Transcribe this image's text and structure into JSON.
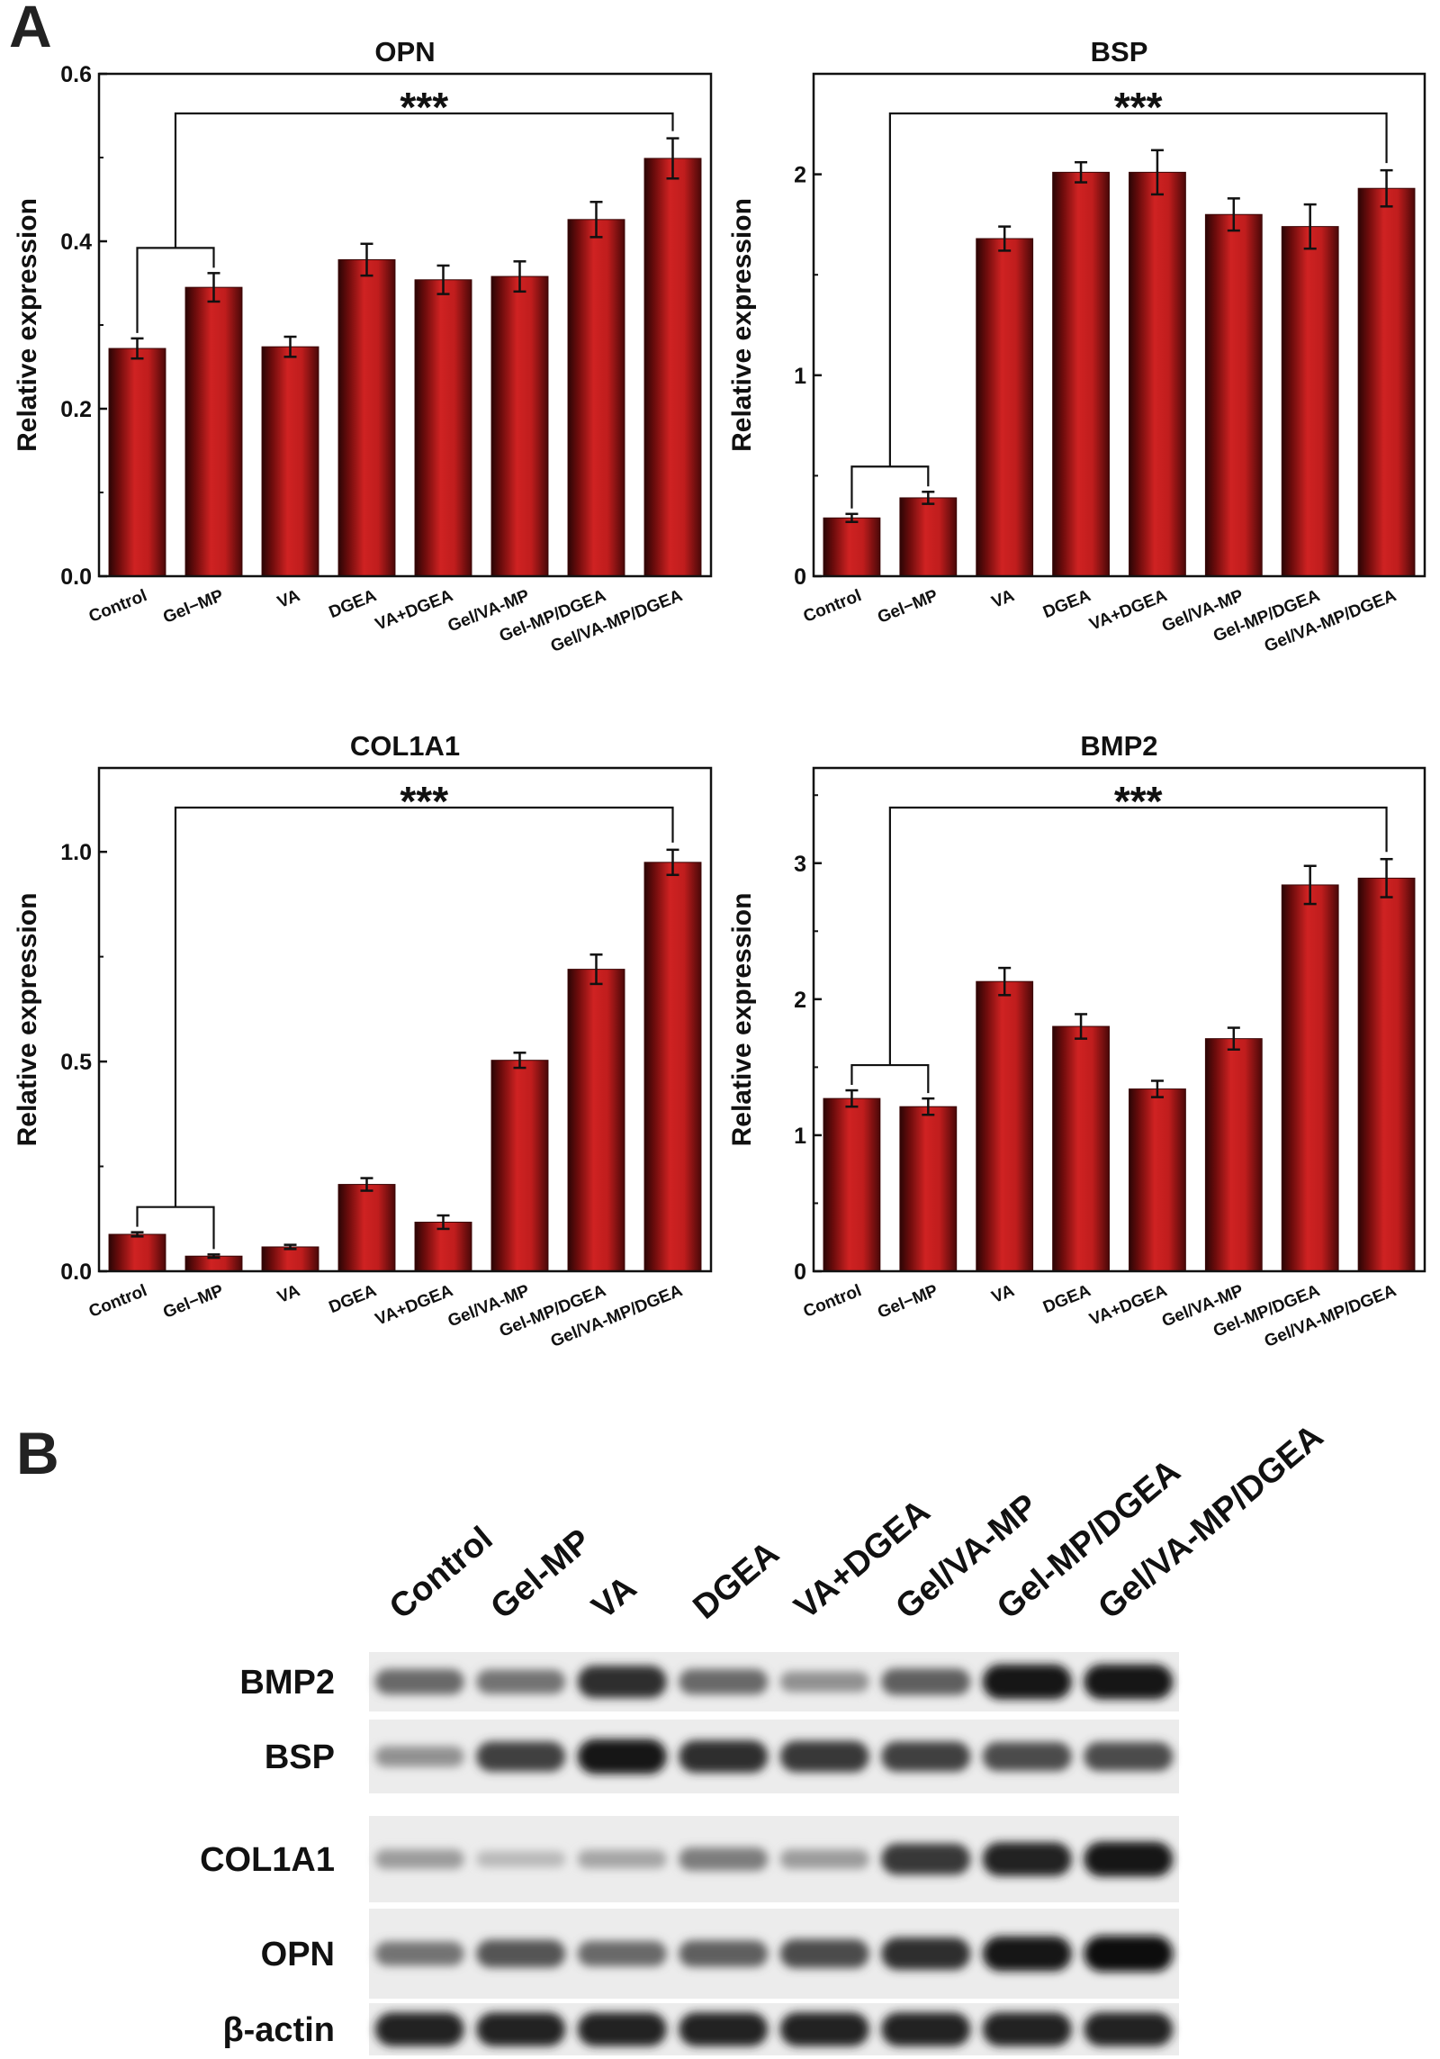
{
  "figure": {
    "panel_a_letter": "A",
    "panel_b_letter": "B"
  },
  "chart_data": [
    {
      "type": "bar",
      "title": "OPN",
      "ylabel": "Relative expression",
      "xlabel": "",
      "categories": [
        "Control",
        "Gel−MP",
        "VA",
        "DGEA",
        "VA+DGEA",
        "Gel/VA-MP",
        "Gel-MP/DGEA",
        "Gel/VA-MP/DGEA"
      ],
      "values": [
        0.272,
        0.345,
        0.274,
        0.378,
        0.354,
        0.358,
        0.426,
        0.499
      ],
      "errors": [
        0.012,
        0.017,
        0.012,
        0.019,
        0.017,
        0.018,
        0.021,
        0.024
      ],
      "ylim": [
        0,
        0.6
      ],
      "yticks": [
        0.0,
        0.2,
        0.4,
        0.6
      ],
      "ytick_labels": [
        "0.0",
        "0.2",
        "0.4",
        "0.6"
      ],
      "significance": {
        "label": "***",
        "from": "Control",
        "to": "Gel/VA-MP/DGEA",
        "group": [
          "Control",
          "Gel−MP"
        ]
      },
      "bar_color": "#c62020"
    },
    {
      "type": "bar",
      "title": "BSP",
      "ylabel": "Relative expression",
      "xlabel": "",
      "categories": [
        "Control",
        "Gel−MP",
        "VA",
        "DGEA",
        "VA+DGEA",
        "Gel/VA-MP",
        "Gel-MP/DGEA",
        "Gel/VA-MP/DGEA"
      ],
      "values": [
        0.29,
        0.39,
        1.68,
        2.01,
        2.01,
        1.8,
        1.74,
        1.93
      ],
      "errors": [
        0.02,
        0.03,
        0.06,
        0.05,
        0.11,
        0.08,
        0.11,
        0.09
      ],
      "ylim": [
        0,
        2.5
      ],
      "yticks": [
        0,
        1,
        2
      ],
      "ytick_labels": [
        "0",
        "1",
        "2"
      ],
      "significance": {
        "label": "***",
        "from": "Control",
        "to": "Gel/VA-MP/DGEA",
        "group": [
          "Control",
          "Gel−MP"
        ]
      },
      "bar_color": "#c62020"
    },
    {
      "type": "bar",
      "title": "COL1A1",
      "ylabel": "Relative expression",
      "xlabel": "",
      "categories": [
        "Control",
        "Gel−MP",
        "VA",
        "DGEA",
        "VA+DGEA",
        "Gel/VA-MP",
        "Gel-MP/DGEA",
        "Gel/VA-MP/DGEA"
      ],
      "values": [
        0.088,
        0.036,
        0.058,
        0.207,
        0.117,
        0.503,
        0.72,
        0.975
      ],
      "errors": [
        0.005,
        0.004,
        0.005,
        0.015,
        0.016,
        0.018,
        0.035,
        0.03
      ],
      "ylim": [
        0,
        1.2
      ],
      "yticks": [
        0.0,
        0.5,
        1.0
      ],
      "ytick_labels": [
        "0.0",
        "0.5",
        "1.0"
      ],
      "significance": {
        "label": "***",
        "from": "Control",
        "to": "Gel/VA-MP/DGEA",
        "group": [
          "Control",
          "Gel−MP"
        ]
      },
      "bar_color": "#c62020"
    },
    {
      "type": "bar",
      "title": "BMP2",
      "ylabel": "Relative expression",
      "xlabel": "",
      "categories": [
        "Control",
        "Gel−MP",
        "VA",
        "DGEA",
        "VA+DGEA",
        "Gel/VA-MP",
        "Gel-MP/DGEA",
        "Gel/VA-MP/DGEA"
      ],
      "values": [
        1.27,
        1.21,
        2.13,
        1.8,
        1.34,
        1.71,
        2.84,
        2.89
      ],
      "errors": [
        0.06,
        0.06,
        0.1,
        0.09,
        0.06,
        0.08,
        0.14,
        0.14
      ],
      "ylim": [
        0,
        3.7
      ],
      "yticks": [
        0,
        1,
        2,
        3
      ],
      "ytick_labels": [
        "0",
        "1",
        "2",
        "3"
      ],
      "significance": {
        "label": "***",
        "from": "Control",
        "to": "Gel/VA-MP/DGEA",
        "group": [
          "Control",
          "Gel−MP"
        ]
      },
      "bar_color": "#c62020"
    }
  ],
  "western_blot": {
    "lanes": [
      "Control",
      "Gel-MP",
      "VA",
      "DGEA",
      "VA+DGEA",
      "Gel/VA-MP",
      "Gel-MP/DGEA",
      "Gel/VA-MP/DGEA"
    ],
    "rows": [
      {
        "protein": "BMP2",
        "intensity": [
          0.55,
          0.5,
          0.85,
          0.55,
          0.35,
          0.6,
          0.95,
          0.95
        ]
      },
      {
        "protein": "BSP",
        "intensity": [
          0.35,
          0.75,
          0.95,
          0.85,
          0.8,
          0.75,
          0.7,
          0.7
        ]
      },
      {
        "protein": "COL1A1",
        "intensity": [
          0.3,
          0.15,
          0.25,
          0.45,
          0.3,
          0.8,
          0.9,
          0.95
        ]
      },
      {
        "protein": "OPN",
        "intensity": [
          0.5,
          0.65,
          0.55,
          0.6,
          0.7,
          0.85,
          0.95,
          1.0
        ]
      },
      {
        "protein": "β-actin",
        "intensity": [
          0.9,
          0.9,
          0.9,
          0.9,
          0.9,
          0.9,
          0.9,
          0.9
        ]
      }
    ]
  }
}
